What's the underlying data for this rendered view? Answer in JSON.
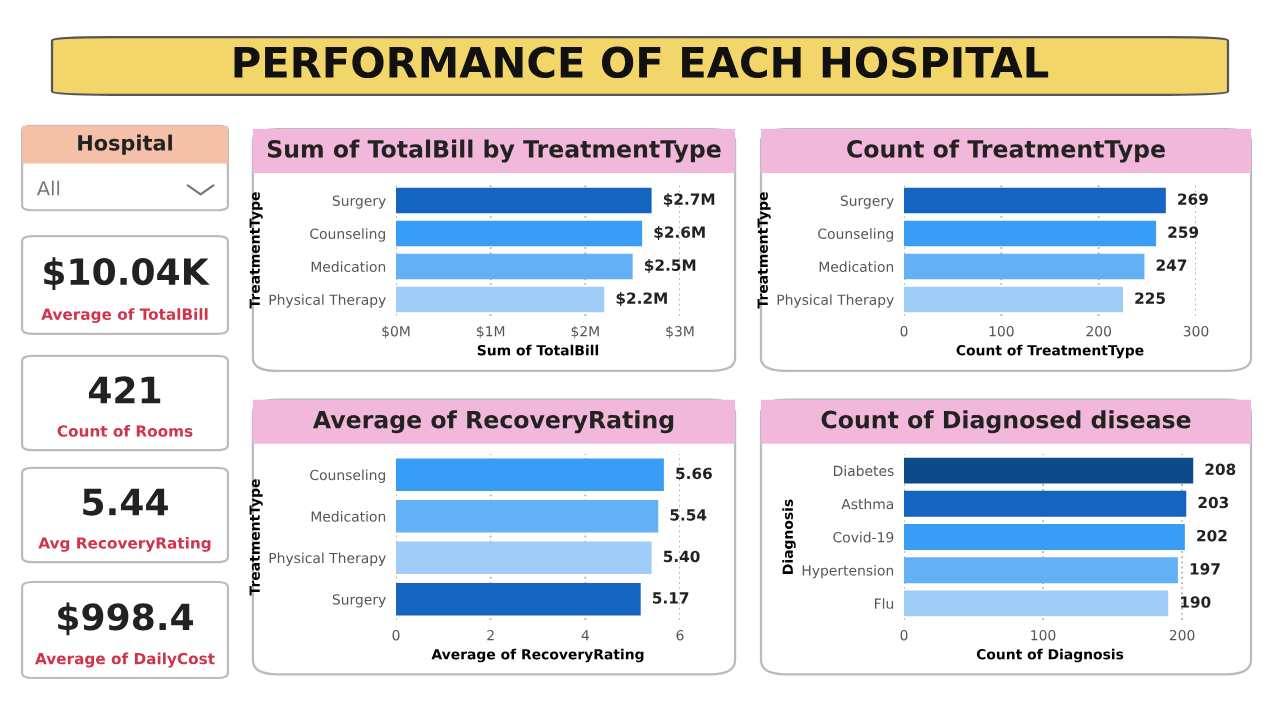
{
  "chart_data": [
    {
      "type": "other",
      "title": "PERFORMANCE OF EACH HOSPITAL"
    },
    {
      "type": "other",
      "title": "Hospital",
      "annotations": [
        "All"
      ]
    },
    {
      "type": "other",
      "title": "$10.04K",
      "subtitle": "Average of TotalBill"
    },
    {
      "type": "other",
      "title": "421",
      "subtitle": "Count of Rooms"
    },
    {
      "type": "other",
      "title": "5.44",
      "subtitle": "Avg RecoveryRating"
    },
    {
      "type": "other",
      "title": "$998.4",
      "subtitle": "Average of DailyCost"
    },
    {
      "type": "bar",
      "orientation": "horizontal",
      "title": "Sum of TotalBill by TreatmentType",
      "xlabel": "Sum of TotalBill",
      "ylabel": "TreatmentType",
      "categories": [
        "Surgery",
        "Counseling",
        "Medication",
        "Physical Therapy"
      ],
      "values": [
        2.7,
        2.6,
        2.5,
        2.2
      ],
      "value_labels": [
        "$2.7M",
        "$2.6M",
        "$2.5M",
        "$2.2M"
      ],
      "colors": [
        "#1565c0",
        "#3a9df5",
        "#64b0f5",
        "#a0cdf8"
      ],
      "xlim": [
        0,
        3
      ],
      "xticks": [
        {
          "value": 0,
          "label": "$0M"
        },
        {
          "value": 1,
          "label": "$1M"
        },
        {
          "value": 2,
          "label": "$2M"
        },
        {
          "value": 3,
          "label": "$3M"
        }
      ],
      "grid": "x"
    },
    {
      "type": "bar",
      "orientation": "horizontal",
      "title": "Count of TreatmentType",
      "xlabel": "Count of TreatmentType",
      "ylabel": "TreatmentType",
      "categories": [
        "Surgery",
        "Counseling",
        "Medication",
        "Physical Therapy"
      ],
      "values": [
        269,
        259,
        247,
        225
      ],
      "data_labels": true,
      "colors": [
        "#1565c0",
        "#3a9df5",
        "#64b0f5",
        "#a0cdf8"
      ],
      "xlim": [
        0,
        300
      ],
      "xticks": [
        0,
        100,
        200,
        300
      ],
      "grid": "x"
    },
    {
      "type": "bar",
      "orientation": "horizontal",
      "title": "Average of RecoveryRating",
      "xlabel": "Average of RecoveryRating",
      "ylabel": "TreatmentType",
      "categories": [
        "Counseling",
        "Medication",
        "Physical Therapy",
        "Surgery"
      ],
      "values": [
        5.66,
        5.54,
        5.4,
        5.17
      ],
      "value_labels": [
        "5.66",
        "5.54",
        "5.40",
        "5.17"
      ],
      "colors": [
        "#3a9df5",
        "#64b0f5",
        "#a0cdf8",
        "#1565c0"
      ],
      "xlim": [
        0,
        6
      ],
      "xticks": [
        0,
        2,
        4,
        6
      ],
      "grid": "x"
    },
    {
      "type": "bar",
      "orientation": "horizontal",
      "title": "Count of Diagnosed disease",
      "xlabel": "Count of Diagnosis",
      "ylabel": "Diagnosis",
      "categories": [
        "Diabetes",
        "Asthma",
        "Covid-19",
        "Hypertension",
        "Flu"
      ],
      "values": [
        208,
        203,
        202,
        197,
        190
      ],
      "data_labels": true,
      "colors": [
        "#0d4a8a",
        "#1565c0",
        "#3a9df5",
        "#64b0f5",
        "#a0cdf8"
      ],
      "xlim": [
        0,
        210
      ],
      "xticks": [
        0,
        100,
        200
      ],
      "grid": "x"
    }
  ]
}
